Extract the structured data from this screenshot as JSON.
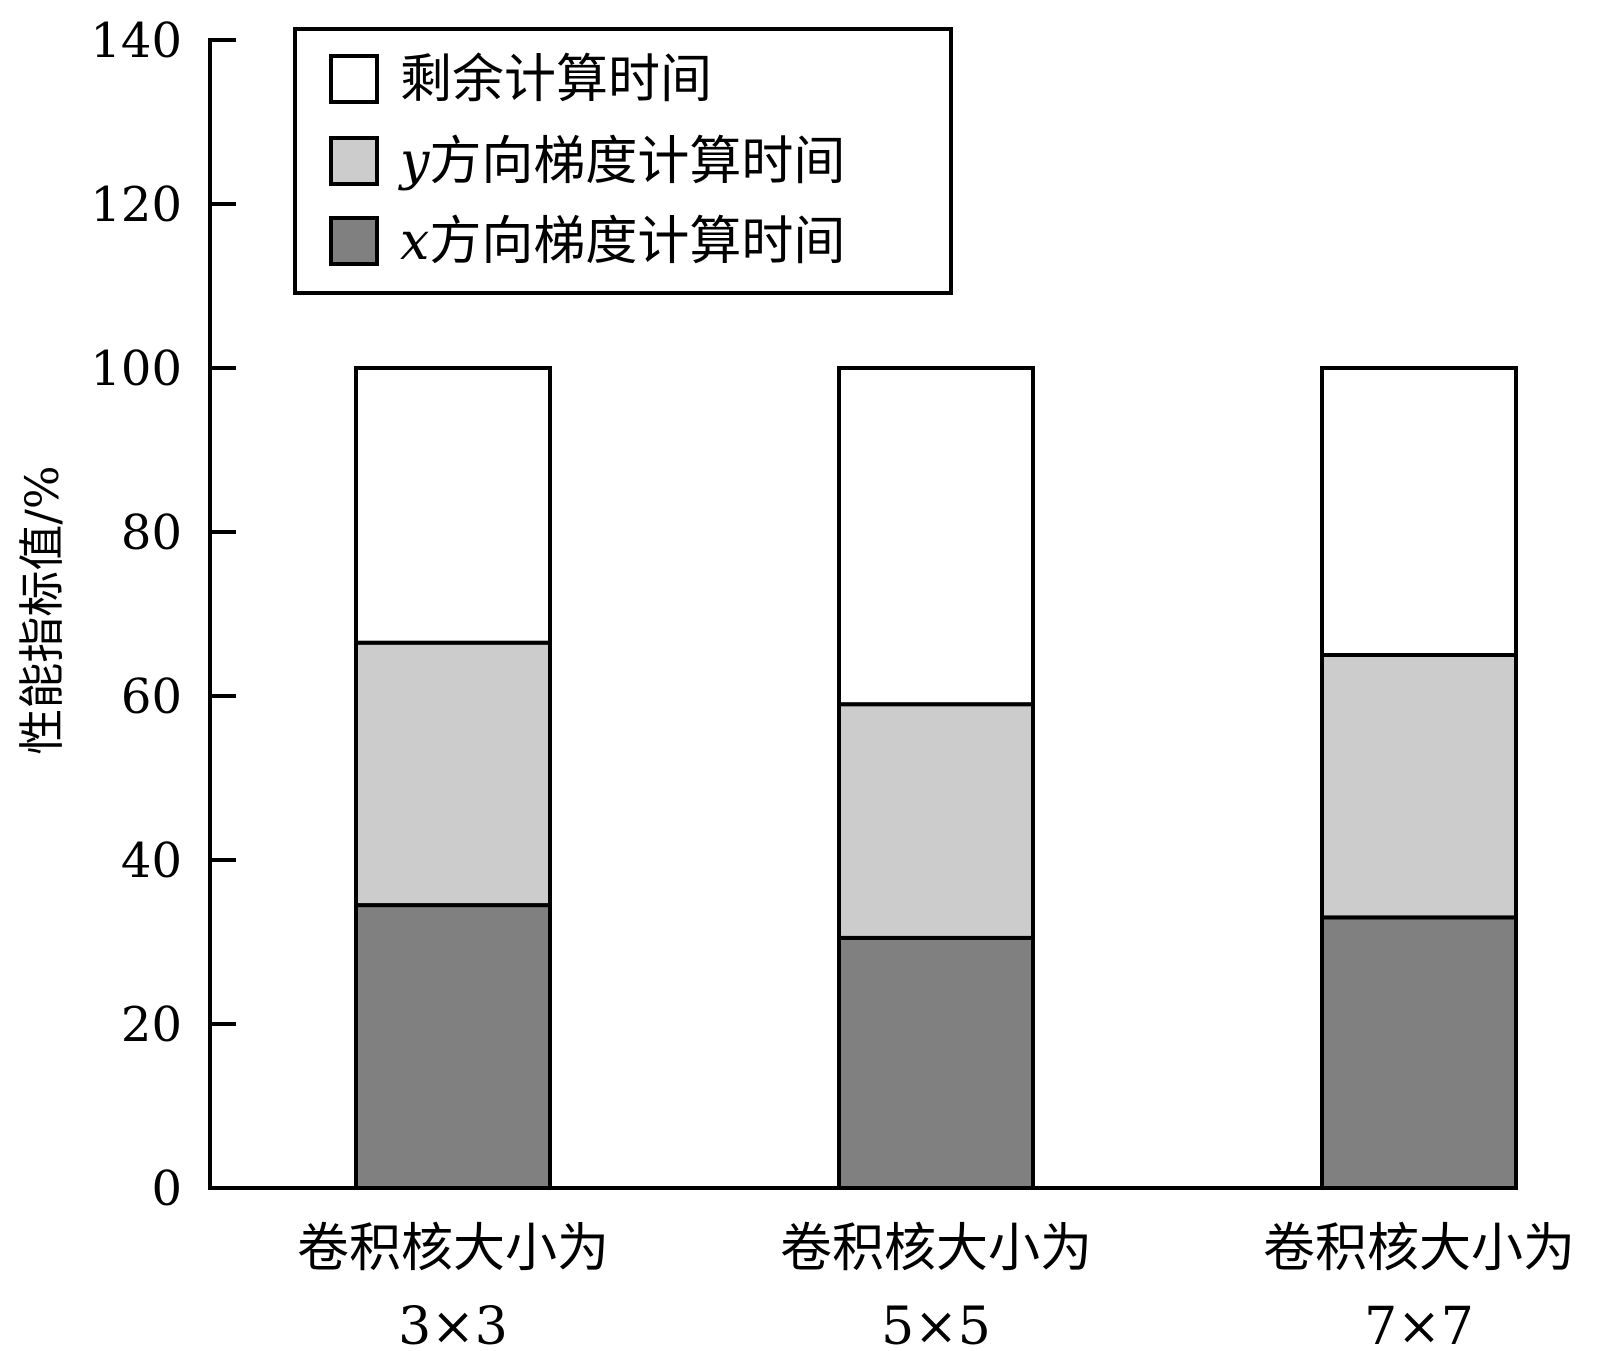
{
  "chart_data": {
    "type": "bar",
    "stacked": true,
    "categories": [
      [
        "卷积核大小为",
        "3×3"
      ],
      [
        "卷积核大小为",
        "5×5"
      ],
      [
        "卷积核大小为",
        "7×7"
      ]
    ],
    "series": [
      {
        "name": "x方向梯度计算时间",
        "var": "x",
        "label": "方向梯度计算时间",
        "color": "#808080",
        "values": [
          34.5,
          30.5,
          33
        ]
      },
      {
        "name": "y方向梯度计算时间",
        "var": "y",
        "label": "方向梯度计算时间",
        "color": "#cccccc",
        "values": [
          32,
          28.5,
          32
        ]
      },
      {
        "name": "剩余计算时间",
        "var": "",
        "label": "剩余计算时间",
        "color": "#ffffff",
        "values": [
          33.5,
          41,
          35
        ]
      }
    ],
    "ylabel": "性能指标值/%",
    "xlabel": "",
    "ylim": [
      0,
      140
    ],
    "yticks": [
      0,
      20,
      40,
      60,
      80,
      100,
      120,
      140
    ],
    "grid": false,
    "legend_position": "top-left"
  }
}
